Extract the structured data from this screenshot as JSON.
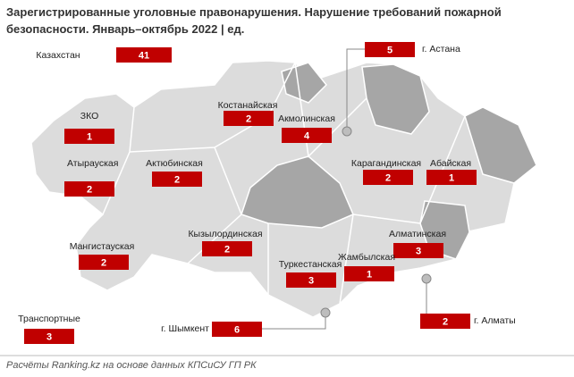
{
  "title": "Зарегистрированные уголовные правонарушения. Нарушение требований пожарной безопасности. Январь–октябрь 2022 | ед.",
  "total": {
    "name": "Казахстан",
    "value": 41
  },
  "regions": [
    {
      "name": "ЗКО",
      "value": 1
    },
    {
      "name": "Атырауская",
      "value": 2
    },
    {
      "name": "Актюбинская",
      "value": 2
    },
    {
      "name": "Костанайская",
      "value": 2
    },
    {
      "name": "Акмолинская",
      "value": 4
    },
    {
      "name": "г. Астана",
      "value": 5
    },
    {
      "name": "Карагандинская",
      "value": 2
    },
    {
      "name": "Абайская",
      "value": 1
    },
    {
      "name": "Мангистауская",
      "value": 2
    },
    {
      "name": "Кызылординская",
      "value": 2
    },
    {
      "name": "Алматинская",
      "value": 3
    },
    {
      "name": "Жамбылская",
      "value": 1
    },
    {
      "name": "Туркестанская",
      "value": 3
    },
    {
      "name": "Транспортные",
      "value": 3
    },
    {
      "name": "г. Шымкент",
      "value": 6
    },
    {
      "name": "г. Алматы",
      "value": 2
    }
  ],
  "footer": "Расчёты Ranking.kz на основе данных КПСиСУ ГП РК"
}
